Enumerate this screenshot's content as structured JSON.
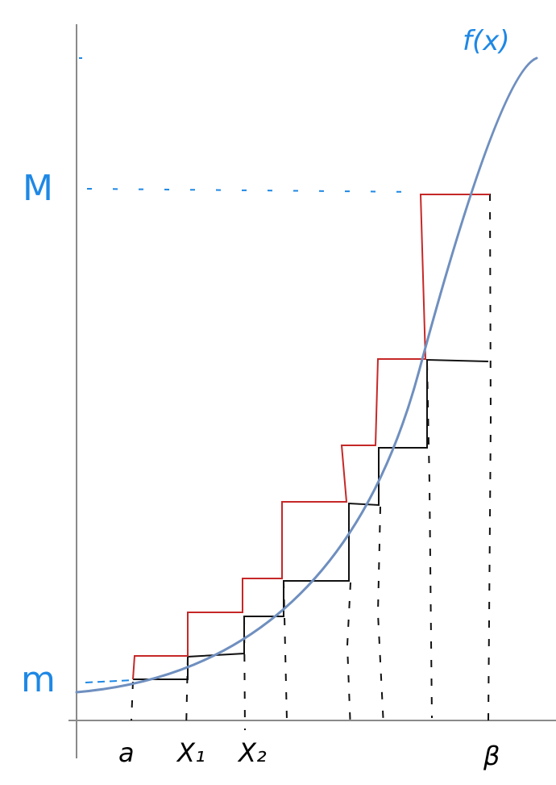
{
  "labels": {
    "function": "f(x)",
    "upper_bound": "M",
    "lower_bound": "m",
    "x_start": "a",
    "x_1": "X₁",
    "x_2": "X₂",
    "x_end": "β"
  },
  "colors": {
    "curve": "#6f8fbf",
    "upper_steps": "#c62828",
    "lower_steps": "#111111",
    "annotation": "#1e88e5",
    "axes": "#8a8a8a"
  }
}
